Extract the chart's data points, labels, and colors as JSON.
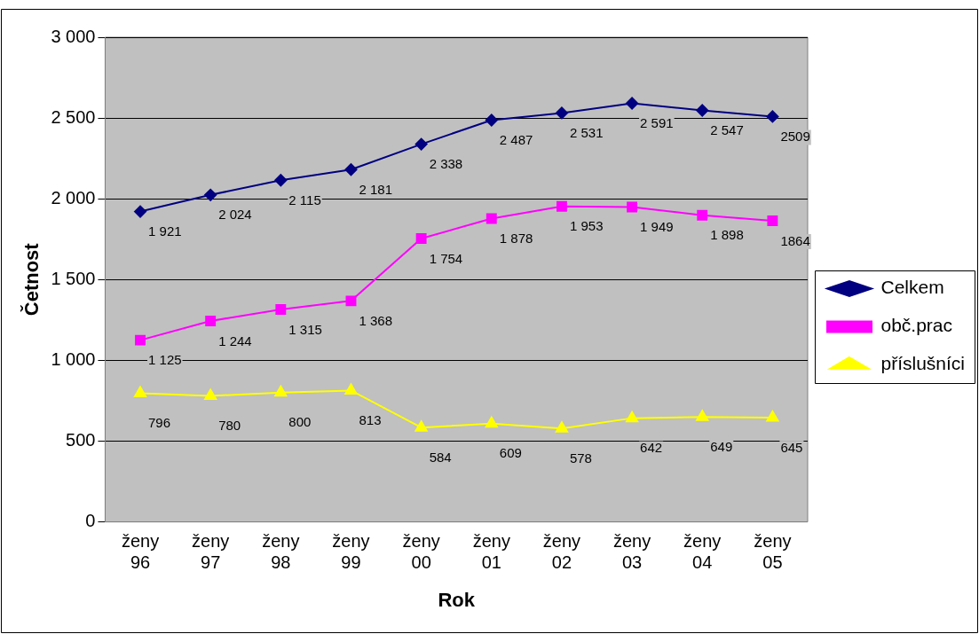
{
  "chart_data": {
    "type": "line",
    "xlabel": "Rok",
    "ylabel": "Četnost",
    "categories": [
      "ženy 96",
      "ženy 97",
      "ženy 98",
      "ženy 99",
      "ženy 00",
      "ženy 01",
      "ženy 02",
      "ženy 03",
      "ženy 04",
      "ženy 05"
    ],
    "ylim": [
      0,
      3000
    ],
    "yticks": [
      0,
      500,
      {
        "value": 1000,
        "label": "1 000"
      },
      {
        "value": 1500,
        "label": "1 500"
      },
      {
        "value": 2000,
        "label": "2 000"
      },
      {
        "value": 2500,
        "label": "2 500"
      },
      {
        "value": 3000,
        "label": "3 000"
      }
    ],
    "grid": "y",
    "legend": "right",
    "series": [
      {
        "name": "Celkem",
        "color": "#000080",
        "marker": "diamond",
        "values": [
          1921,
          2024,
          2115,
          2181,
          2338,
          2487,
          2531,
          2591,
          2547,
          2509
        ],
        "value_labels": [
          "1 921",
          "2 024",
          "2 115",
          "2 181",
          "2 338",
          "2 487",
          "2 531",
          "2 591",
          "2 547",
          "2509"
        ]
      },
      {
        "name": "obč.prac",
        "color": "#ff00ff",
        "marker": "square",
        "values": [
          1125,
          1244,
          1315,
          1368,
          1754,
          1878,
          1953,
          1949,
          1898,
          1864
        ],
        "value_labels": [
          "1 125",
          "1 244",
          "1 315",
          "1 368",
          "1 754",
          "1 878",
          "1 953",
          "1 949",
          "1 898",
          "1864"
        ]
      },
      {
        "name": "příslušníci",
        "color": "#ffff00",
        "marker": "triangle",
        "values": [
          796,
          780,
          800,
          813,
          584,
          609,
          578,
          642,
          649,
          645
        ],
        "value_labels": [
          "796",
          "780",
          "800",
          "813",
          "584",
          "609",
          "578",
          "642",
          "649",
          "645"
        ]
      }
    ]
  }
}
